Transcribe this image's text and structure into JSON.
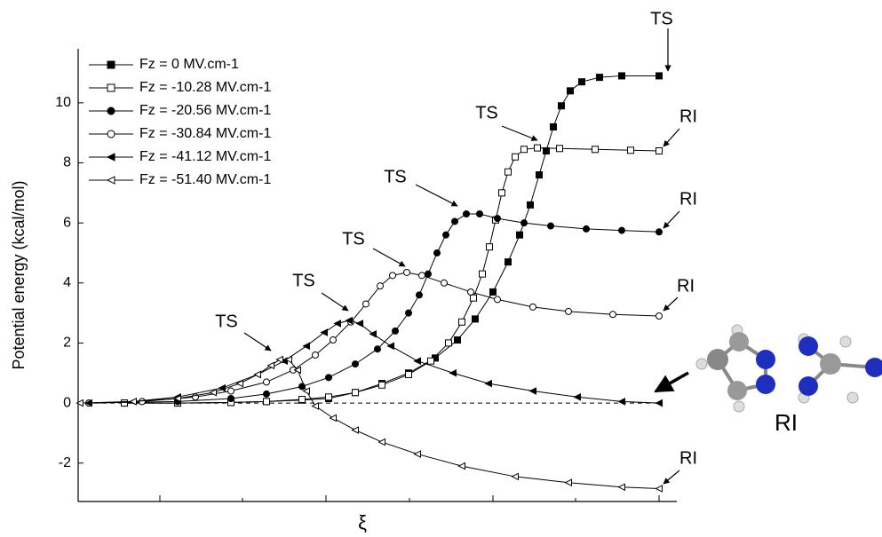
{
  "chart_data": {
    "type": "line",
    "x_label": "ξ",
    "y_label": "Potential energy (kcal/mol)",
    "xlim": [
      88,
      762
    ],
    "xticks": [
      180,
      273,
      367,
      461,
      555,
      648,
      742
    ],
    "ylim": [
      -3.28,
      11.8
    ],
    "yticks": [
      -2,
      0,
      2,
      4,
      6,
      8,
      10
    ],
    "reference_line": 0,
    "legend": "upper left",
    "series": [
      {
        "name": "Fz = 0 MV.cm-1",
        "color": "#000000",
        "marker": "square",
        "filled": true,
        "x": [
          140,
          200,
          260,
          300,
          340,
          370,
          400,
          430,
          460,
          490,
          515,
          535,
          555,
          572,
          585,
          597,
          607,
          615,
          623,
          632,
          642,
          655,
          675,
          700,
          742
        ],
        "values": [
          0,
          0,
          0.02,
          0.05,
          0.1,
          0.15,
          0.35,
          0.65,
          1.0,
          1.5,
          2.1,
          2.8,
          3.7,
          4.7,
          5.6,
          6.6,
          7.6,
          8.4,
          9.2,
          9.9,
          10.4,
          10.7,
          10.85,
          10.9,
          10.9
        ]
      },
      {
        "name": "Fz = -10.28 MV.cm-1",
        "color": "#000000",
        "marker": "square",
        "filled": false,
        "x": [
          140,
          200,
          260,
          300,
          340,
          370,
          400,
          430,
          460,
          485,
          505,
          520,
          533,
          543,
          551,
          558,
          565,
          572,
          580,
          590,
          605,
          630,
          670,
          710,
          742
        ],
        "values": [
          0,
          0,
          0.02,
          0.05,
          0.12,
          0.2,
          0.35,
          0.6,
          0.95,
          1.4,
          2.0,
          2.7,
          3.5,
          4.3,
          5.2,
          6.1,
          7.0,
          7.7,
          8.2,
          8.45,
          8.5,
          8.48,
          8.45,
          8.42,
          8.4
        ]
      },
      {
        "name": "Fz = -20.56 MV.cm-1",
        "color": "#000000",
        "marker": "circle",
        "filled": true,
        "x": [
          100,
          200,
          260,
          300,
          340,
          370,
          400,
          425,
          445,
          460,
          472,
          482,
          492,
          502,
          512,
          525,
          540,
          560,
          590,
          620,
          660,
          700,
          742
        ],
        "values": [
          0,
          0.05,
          0.15,
          0.3,
          0.55,
          0.85,
          1.3,
          1.8,
          2.4,
          3.0,
          3.6,
          4.3,
          5.0,
          5.6,
          6.05,
          6.3,
          6.3,
          6.15,
          6.0,
          5.9,
          5.8,
          5.75,
          5.7
        ]
      },
      {
        "name": "Fz = -30.84 MV.cm-1",
        "color": "#000000",
        "marker": "circle",
        "filled": false,
        "x": [
          100,
          160,
          220,
          260,
          300,
          330,
          355,
          375,
          395,
          412,
          428,
          442,
          458,
          475,
          500,
          530,
          560,
          600,
          640,
          690,
          742
        ],
        "values": [
          0,
          0.05,
          0.2,
          0.4,
          0.7,
          1.1,
          1.6,
          2.1,
          2.7,
          3.3,
          3.9,
          4.25,
          4.35,
          4.25,
          4.0,
          3.7,
          3.45,
          3.2,
          3.05,
          2.95,
          2.9
        ]
      },
      {
        "name": "Fz = -41.12 MV.cm-1",
        "color": "#000000",
        "marker": "triangle-left",
        "filled": true,
        "x": [
          100,
          150,
          200,
          250,
          290,
          320,
          345,
          365,
          380,
          393,
          405,
          420,
          440,
          470,
          510,
          550,
          600,
          650,
          700,
          742
        ],
        "values": [
          0,
          0.05,
          0.2,
          0.5,
          0.95,
          1.4,
          1.9,
          2.35,
          2.65,
          2.75,
          2.65,
          2.3,
          1.9,
          1.4,
          1.0,
          0.65,
          0.4,
          0.2,
          0.05,
          0
        ]
      },
      {
        "name": "Fz = -51.40 MV.cm-1",
        "color": "#000000",
        "marker": "triangle-left",
        "filled": false,
        "x": [
          90,
          150,
          200,
          240,
          270,
          290,
          305,
          315,
          325,
          335,
          345,
          355,
          375,
          400,
          430,
          470,
          520,
          580,
          640,
          700,
          742
        ],
        "values": [
          0,
          0.05,
          0.15,
          0.35,
          0.65,
          0.95,
          1.25,
          1.45,
          1.45,
          1.1,
          0.4,
          -0.1,
          -0.5,
          -0.9,
          -1.3,
          -1.7,
          -2.1,
          -2.45,
          -2.65,
          -2.8,
          -2.85
        ]
      }
    ],
    "annotations": [
      "TS",
      "TS",
      "RI",
      "TS",
      "RI",
      "TS",
      "RI",
      "TS",
      "TS",
      "RI",
      "RI"
    ]
  }
}
